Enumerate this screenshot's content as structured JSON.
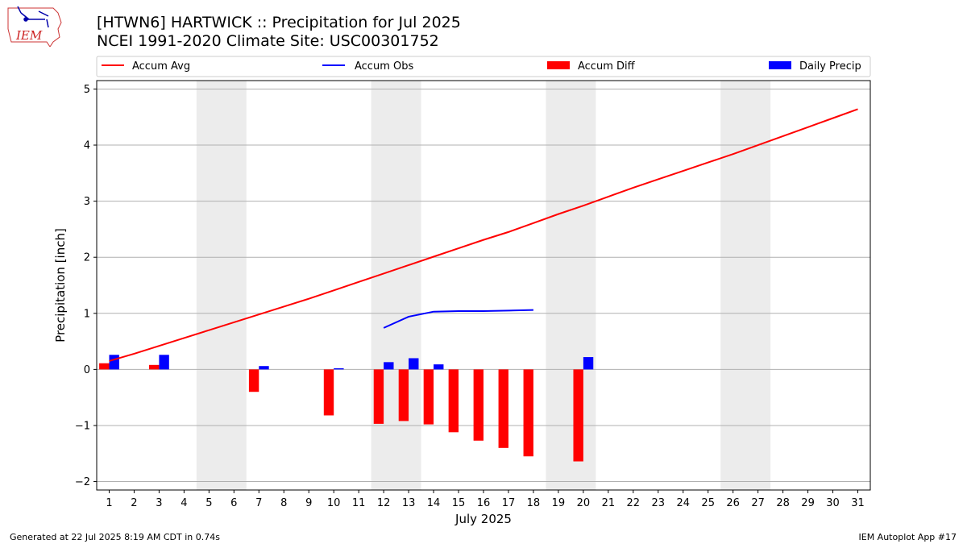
{
  "header": {
    "title_line1": "[HTWN6] HARTWICK :: Precipitation for Jul 2025",
    "title_line2": "NCEI 1991-2020 Climate Site: USC00301752",
    "logo_text": "IEM"
  },
  "footer": {
    "generated": "Generated at 22 Jul 2025 8:19 AM CDT in 0.74s",
    "app": "IEM Autoplot App #17"
  },
  "chart_data": {
    "type": "bar",
    "xlabel": "July 2025",
    "ylabel": "Precipitation [inch]",
    "ylim": [
      -2.15,
      5.15
    ],
    "xlim": [
      0.5,
      31.5
    ],
    "yticks": [
      -2,
      -1,
      0,
      1,
      2,
      3,
      4,
      5
    ],
    "ytick_labels": [
      "−2",
      "−1",
      "0",
      "1",
      "2",
      "3",
      "4",
      "5"
    ],
    "x": [
      1,
      2,
      3,
      4,
      5,
      6,
      7,
      8,
      9,
      10,
      11,
      12,
      13,
      14,
      15,
      16,
      17,
      18,
      19,
      20,
      21,
      22,
      23,
      24,
      25,
      26,
      27,
      28,
      29,
      30,
      31
    ],
    "x_labels": [
      "1",
      "2",
      "3",
      "4",
      "5",
      "6",
      "7",
      "8",
      "9",
      "10",
      "11",
      "12",
      "13",
      "14",
      "15",
      "16",
      "17",
      "18",
      "19",
      "20",
      "21",
      "22",
      "23",
      "24",
      "25",
      "26",
      "27",
      "28",
      "29",
      "30",
      "31"
    ],
    "grid": "horizontal",
    "legend_position": "top",
    "weekend_spans": [
      [
        4.5,
        6.5
      ],
      [
        11.5,
        13.5
      ],
      [
        18.5,
        20.5
      ],
      [
        25.5,
        27.5
      ]
    ],
    "series": [
      {
        "name": "Accum Avg",
        "kind": "line",
        "color": "#ff0000",
        "x": [
          1,
          2,
          3,
          4,
          5,
          6,
          7,
          8,
          9,
          10,
          11,
          12,
          13,
          14,
          15,
          16,
          17,
          18,
          19,
          20,
          21,
          22,
          23,
          24,
          25,
          26,
          27,
          28,
          29,
          30,
          31
        ],
        "values": [
          0.15,
          0.28,
          0.42,
          0.56,
          0.7,
          0.84,
          0.98,
          1.12,
          1.26,
          1.41,
          1.56,
          1.71,
          1.86,
          2.01,
          2.16,
          2.31,
          2.45,
          2.61,
          2.77,
          2.92,
          3.08,
          3.24,
          3.39,
          3.54,
          3.69,
          3.84,
          4.0,
          4.16,
          4.32,
          4.48,
          4.64
        ]
      },
      {
        "name": "Accum Obs",
        "kind": "line",
        "color": "#0000ff",
        "x": [
          12,
          13,
          14,
          15,
          16,
          17,
          18
        ],
        "values": [
          0.74,
          0.94,
          1.03,
          1.04,
          1.04,
          1.05,
          1.06
        ]
      },
      {
        "name": "Accum Diff",
        "kind": "bar",
        "color": "#ff0000",
        "offset": -0.2,
        "x": [
          1,
          3,
          7,
          10,
          12,
          13,
          14,
          15,
          16,
          17,
          18,
          20
        ],
        "values": [
          0.11,
          0.08,
          -0.4,
          -0.82,
          -0.97,
          -0.92,
          -0.98,
          -1.12,
          -1.27,
          -1.4,
          -1.55,
          -1.64
        ]
      },
      {
        "name": "Daily Precip",
        "kind": "bar",
        "color": "#0000ff",
        "offset": 0.2,
        "x": [
          1,
          3,
          7,
          10,
          12,
          13,
          14,
          20
        ],
        "values": [
          0.26,
          0.26,
          0.06,
          0.02,
          0.13,
          0.2,
          0.09,
          0.22
        ]
      }
    ]
  }
}
